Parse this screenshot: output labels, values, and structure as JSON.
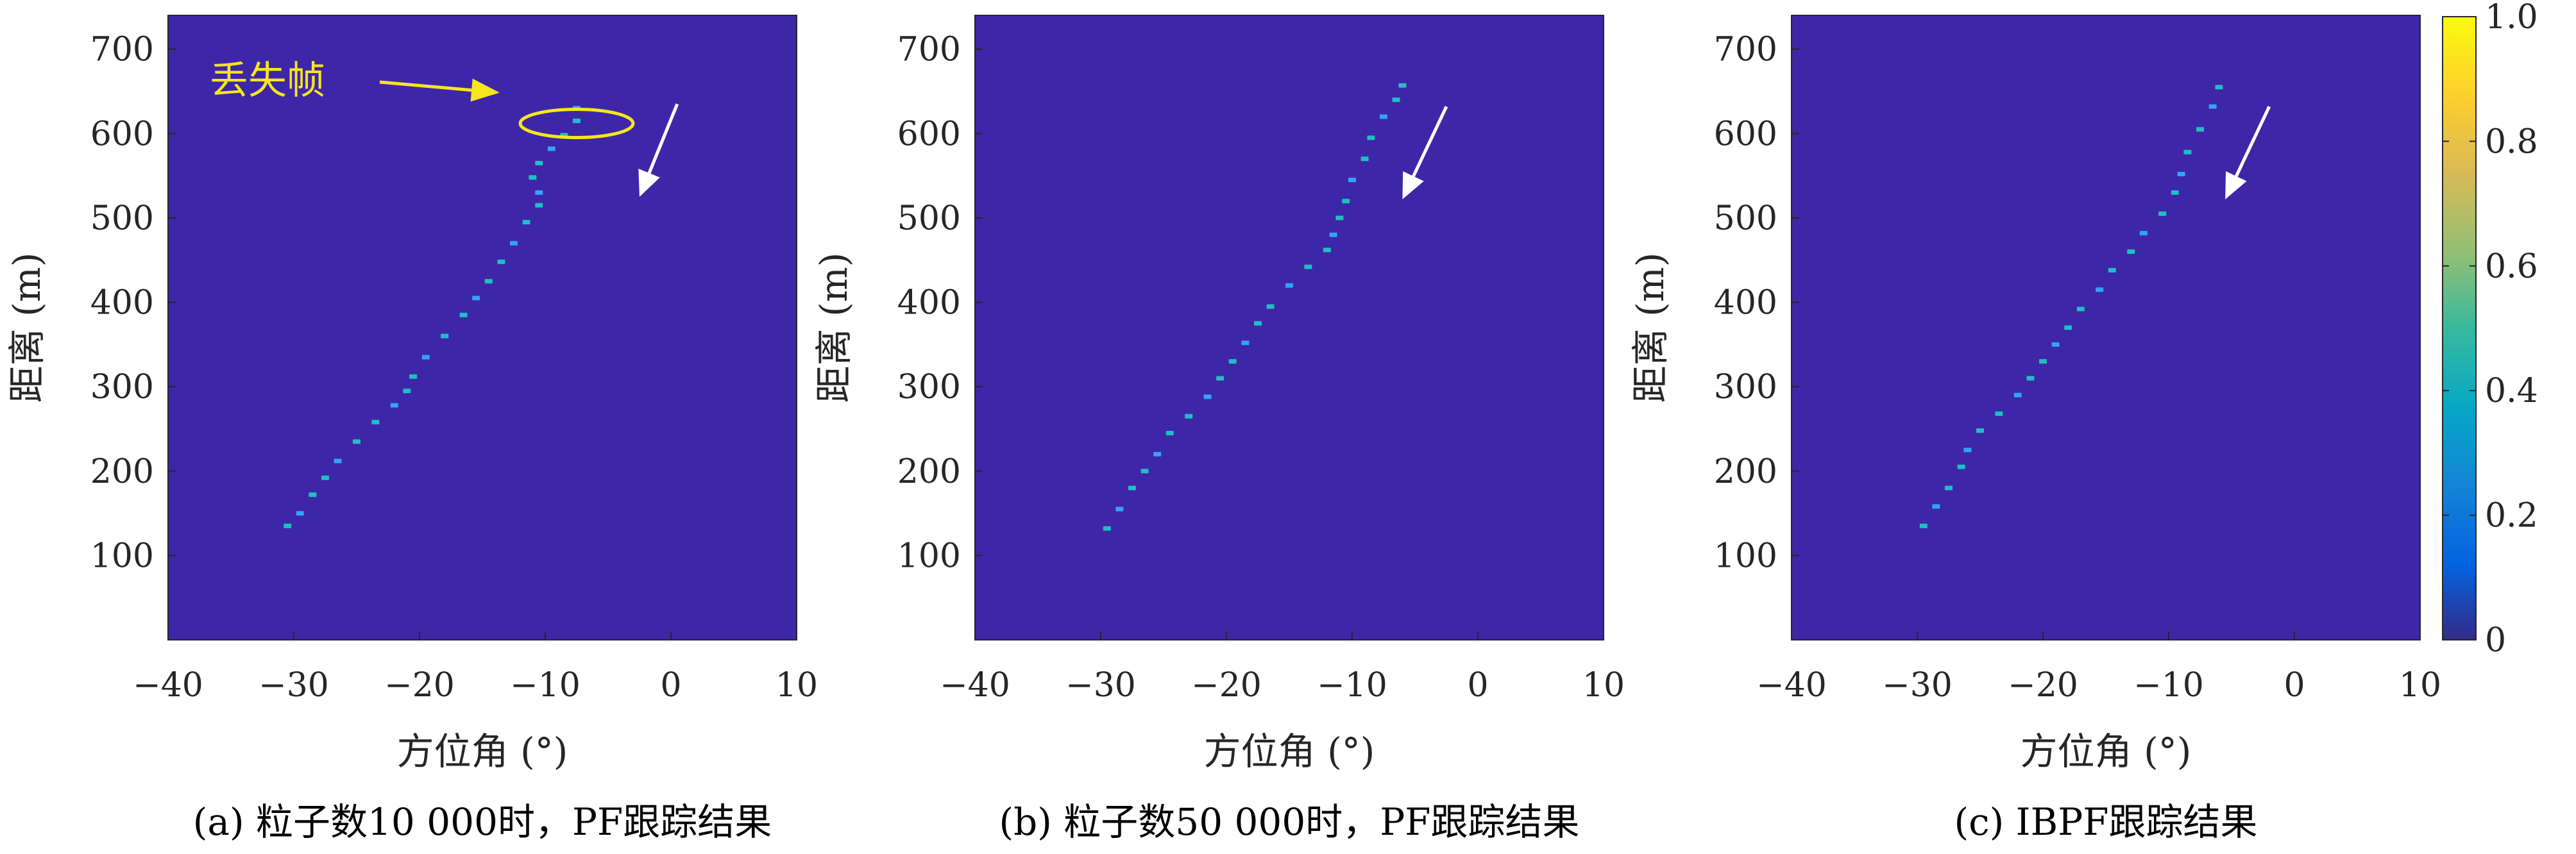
{
  "colors": {
    "background": "#3e26a8",
    "track": "#1fbfc3",
    "track_alt": "#34a2f5",
    "white_arrow": "#ffffff",
    "annotation": "#f5e61e",
    "frame": "#262626"
  },
  "colorbar": {
    "colormap": "parula",
    "ticks": [
      "0",
      "0.2",
      "0.4",
      "0.6",
      "0.8",
      "1.0"
    ],
    "range": [
      0,
      1
    ]
  },
  "chart_data": [
    {
      "type": "heatmap",
      "caption": "(a) 粒子数10 000时，PF跟踪结果",
      "xlabel": "方位角 (°)",
      "ylabel": "距离 (m)",
      "xlim": [
        -40,
        10
      ],
      "ylim": [
        0,
        740
      ],
      "xticks": [
        "−40",
        "−30",
        "−20",
        "−10",
        "0",
        "10"
      ],
      "yticks": [
        "100",
        "200",
        "300",
        "400",
        "500",
        "600",
        "700"
      ],
      "grid": false,
      "annotation": {
        "text": "丢失帧",
        "target": [
          -7.5,
          612
        ]
      },
      "direction_arrow": {
        "from": [
          0.5,
          635
        ],
        "to": [
          -2.5,
          525
        ]
      },
      "track": [
        [
          -30.5,
          135
        ],
        [
          -29.5,
          150
        ],
        [
          -28.5,
          172
        ],
        [
          -27.5,
          192
        ],
        [
          -26.5,
          212
        ],
        [
          -25,
          235
        ],
        [
          -23.5,
          258
        ],
        [
          -22,
          278
        ],
        [
          -21,
          295
        ],
        [
          -20.5,
          312
        ],
        [
          -19.5,
          335
        ],
        [
          -18,
          360
        ],
        [
          -16.5,
          385
        ],
        [
          -15.5,
          405
        ],
        [
          -14.5,
          425
        ],
        [
          -13.5,
          448
        ],
        [
          -12.5,
          470
        ],
        [
          -11.5,
          495
        ],
        [
          -10.5,
          515
        ],
        [
          -10.5,
          530
        ],
        [
          -11,
          548
        ],
        [
          -10.5,
          565
        ],
        [
          -9.5,
          582
        ],
        [
          -8.5,
          598
        ],
        [
          -7.5,
          615
        ],
        [
          -7.5,
          630
        ]
      ]
    },
    {
      "type": "heatmap",
      "caption": "(b) 粒子数50 000时，PF跟踪结果",
      "xlabel": "方位角 (°)",
      "ylabel": "距离 (m)",
      "xlim": [
        -40,
        10
      ],
      "ylim": [
        0,
        740
      ],
      "xticks": [
        "−40",
        "−30",
        "−20",
        "−10",
        "0",
        "10"
      ],
      "yticks": [
        "100",
        "200",
        "300",
        "400",
        "500",
        "600",
        "700"
      ],
      "grid": false,
      "direction_arrow": {
        "from": [
          -2.5,
          632
        ],
        "to": [
          -6,
          522
        ]
      },
      "track": [
        [
          -29.5,
          132
        ],
        [
          -28.5,
          155
        ],
        [
          -27.5,
          180
        ],
        [
          -26.5,
          200
        ],
        [
          -25.5,
          220
        ],
        [
          -24.5,
          245
        ],
        [
          -23,
          265
        ],
        [
          -21.5,
          288
        ],
        [
          -20.5,
          310
        ],
        [
          -19.5,
          330
        ],
        [
          -18.5,
          352
        ],
        [
          -17.5,
          375
        ],
        [
          -16.5,
          395
        ],
        [
          -15,
          420
        ],
        [
          -13.5,
          442
        ],
        [
          -12,
          462
        ],
        [
          -11.5,
          480
        ],
        [
          -11,
          500
        ],
        [
          -10.5,
          520
        ],
        [
          -10,
          545
        ],
        [
          -9,
          570
        ],
        [
          -8.5,
          595
        ],
        [
          -7.5,
          620
        ],
        [
          -6.5,
          640
        ],
        [
          -6,
          657
        ]
      ]
    },
    {
      "type": "heatmap",
      "caption": "(c) IBPF跟踪结果",
      "xlabel": "方位角 (°)",
      "ylabel": "距离 (m)",
      "xlim": [
        -40,
        10
      ],
      "ylim": [
        0,
        740
      ],
      "xticks": [
        "−40",
        "−30",
        "−20",
        "−10",
        "0",
        "10"
      ],
      "yticks": [
        "100",
        "200",
        "300",
        "400",
        "500",
        "600",
        "700"
      ],
      "grid": false,
      "direction_arrow": {
        "from": [
          -2,
          632
        ],
        "to": [
          -5.5,
          522
        ]
      },
      "track": [
        [
          -29.5,
          135
        ],
        [
          -28.5,
          158
        ],
        [
          -27.5,
          180
        ],
        [
          -26.5,
          205
        ],
        [
          -26,
          225
        ],
        [
          -25,
          248
        ],
        [
          -23.5,
          268
        ],
        [
          -22,
          290
        ],
        [
          -21,
          310
        ],
        [
          -20,
          330
        ],
        [
          -19,
          350
        ],
        [
          -18,
          370
        ],
        [
          -17,
          392
        ],
        [
          -15.5,
          415
        ],
        [
          -14.5,
          438
        ],
        [
          -13,
          460
        ],
        [
          -12,
          482
        ],
        [
          -10.5,
          505
        ],
        [
          -9.5,
          530
        ],
        [
          -9,
          552
        ],
        [
          -8.5,
          578
        ],
        [
          -7.5,
          605
        ],
        [
          -6.5,
          632
        ],
        [
          -6,
          655
        ]
      ]
    }
  ]
}
